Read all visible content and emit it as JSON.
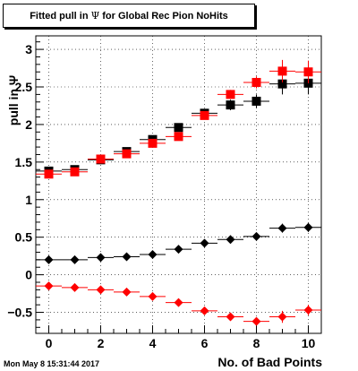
{
  "title": {
    "prefix": "Fitted pull in",
    "symbol": "Ψ",
    "suffix": "for Global Rec Pion NoHits"
  },
  "timestamp": "Mon May  8 15:31:44 2017",
  "chart_data": {
    "type": "scatter",
    "xlabel": "No. of Bad Points",
    "ylabel": "pull in Ψ",
    "xlim": [
      -0.5,
      10.5
    ],
    "ylim": [
      -0.78,
      3.18
    ],
    "xticks": [
      0,
      2,
      4,
      6,
      8,
      10
    ],
    "yticks": [
      -0.5,
      0,
      0.5,
      1,
      1.5,
      2,
      2.5,
      3
    ],
    "ytick_labels": [
      "−0.5",
      "0",
      "0.5",
      "1",
      "1.5",
      "2",
      "2.5",
      "3"
    ],
    "x": [
      0,
      1,
      2,
      3,
      4,
      5,
      6,
      7,
      8,
      9,
      10
    ],
    "series": [
      {
        "marker": "square",
        "color": "#000000",
        "values": [
          1.38,
          1.4,
          1.53,
          1.64,
          1.8,
          1.96,
          2.15,
          2.26,
          2.31,
          2.54,
          2.55
        ],
        "yerr": [
          0.02,
          0.02,
          0.03,
          0.03,
          0.04,
          0.04,
          0.05,
          0.07,
          0.09,
          0.14,
          0.15
        ]
      },
      {
        "marker": "square",
        "color": "#ff0000",
        "values": [
          1.34,
          1.37,
          1.54,
          1.61,
          1.75,
          1.84,
          2.12,
          2.4,
          2.56,
          2.71,
          2.7
        ],
        "yerr": [
          0.02,
          0.02,
          0.03,
          0.03,
          0.04,
          0.04,
          0.05,
          0.06,
          0.08,
          0.15,
          0.15
        ]
      },
      {
        "marker": "diamond",
        "color": "#000000",
        "values": [
          0.2,
          0.2,
          0.23,
          0.24,
          0.27,
          0.34,
          0.42,
          0.47,
          0.51,
          0.62,
          0.63
        ],
        "yerr": [
          0.01,
          0.01,
          0.01,
          0.01,
          0.02,
          0.02,
          0.03,
          0.03,
          0.04,
          0.06,
          0.06
        ]
      },
      {
        "marker": "diamond",
        "color": "#ff0000",
        "values": [
          -0.15,
          -0.17,
          -0.2,
          -0.23,
          -0.29,
          -0.37,
          -0.48,
          -0.56,
          -0.62,
          -0.56,
          -0.47
        ],
        "yerr": [
          0.01,
          0.01,
          0.01,
          0.02,
          0.02,
          0.03,
          0.03,
          0.04,
          0.05,
          0.08,
          0.07
        ]
      }
    ],
    "grid": true,
    "x_error_halfwidth": 0.5
  }
}
